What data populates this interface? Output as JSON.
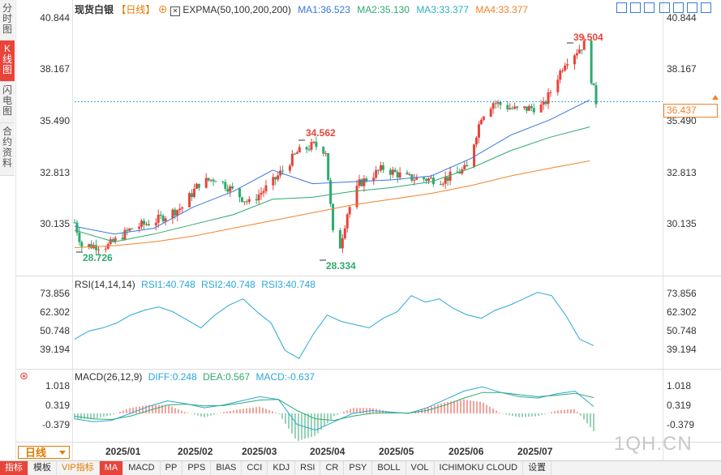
{
  "side_tabs": [
    "分时图",
    "K线图",
    "闪电图",
    "合约资料"
  ],
  "main_legend": {
    "name": "现货白银",
    "period": "【日线】",
    "indicator": "EXPMA(50,100,200,200)",
    "items": [
      {
        "label": "MA1:36.523",
        "color": "#3b78d8"
      },
      {
        "label": "MA2:35.130",
        "color": "#2eaa6e"
      },
      {
        "label": "MA3:33.377",
        "color": "#2ab0c4"
      },
      {
        "label": "MA4:33.377",
        "color": "#f0832b"
      }
    ]
  },
  "rsi_legend": {
    "name": "RSI(14,14,14)",
    "items": [
      {
        "label": "RSI1:40.748",
        "color": "#2aa7d8"
      },
      {
        "label": "RSI2:40.748",
        "color": "#2aa7d8"
      },
      {
        "label": "RSI3:40.748",
        "color": "#2aa7d8"
      }
    ]
  },
  "macd_legend": {
    "name": "MACD(26,12,9)",
    "items": [
      {
        "label": "DIFF:0.248",
        "color": "#2aa7d8"
      },
      {
        "label": "DEA:0.567",
        "color": "#2eaa6e"
      },
      {
        "label": "MACD:-0.637",
        "color": "#2aa7d8"
      }
    ]
  },
  "price_axis": [
    "40.844",
    "38.167",
    "35.490",
    "32.813",
    "30.135"
  ],
  "rsi_axis": [
    "73.856",
    "62.302",
    "50.748",
    "39.194"
  ],
  "macd_axis": [
    "1.018",
    "0.319",
    "-0.379"
  ],
  "current_price": "36.437",
  "annotations": {
    "high": "39.504",
    "mid_high": "34.562",
    "low": "28.334",
    "start_low": "28.726"
  },
  "x_labels": [
    "2025/01",
    "2025/02",
    "2025/03",
    "2025/04",
    "2025/05",
    "2025/06",
    "2025/07"
  ],
  "period_button": "日线",
  "watermark": "1QH.CN",
  "toolbar": [
    "指标",
    "模板",
    "VIP指标",
    "MA",
    "MACD",
    "PP",
    "PPS",
    "BIAS",
    "CCI",
    "KDJ",
    "RSI",
    "CR",
    "PSY",
    "BOLL",
    "VOL",
    "ICHIMOKU CLOUD",
    "设置"
  ],
  "colors": {
    "up": "#e8443a",
    "down": "#2eaa6e",
    "ema1": "#3b78d8",
    "ema2": "#2eaa6e",
    "ema3": "#f0832b",
    "rsi": "#2aa7d8"
  },
  "chart_data": {
    "type": "candlestick",
    "title": "现货白银 【日线】",
    "x_range": [
      "2024-12-17",
      "2025-07-23"
    ],
    "ylim": [
      27.5,
      41.2
    ],
    "price_high": 39.504,
    "price_low": 28.334,
    "close_points": [
      {
        "date": "2024-12-17",
        "close": 30.2
      },
      {
        "date": "2024-12-20",
        "close": 29.0
      },
      {
        "date": "2024-12-31",
        "close": 29.0
      },
      {
        "date": "2025-01-10",
        "close": 29.9
      },
      {
        "date": "2025-01-20",
        "close": 30.3
      },
      {
        "date": "2025-01-31",
        "close": 31.0
      },
      {
        "date": "2025-02-07",
        "close": 32.2
      },
      {
        "date": "2025-02-14",
        "close": 32.5
      },
      {
        "date": "2025-02-28",
        "close": 31.2
      },
      {
        "date": "2025-03-10",
        "close": 32.3
      },
      {
        "date": "2025-03-20",
        "close": 33.8
      },
      {
        "date": "2025-03-27",
        "close": 34.2
      },
      {
        "date": "2025-04-01",
        "close": 33.9
      },
      {
        "date": "2025-04-04",
        "close": 29.6
      },
      {
        "date": "2025-04-07",
        "close": 29.0
      },
      {
        "date": "2025-04-10",
        "close": 30.7
      },
      {
        "date": "2025-04-15",
        "close": 32.2
      },
      {
        "date": "2025-04-25",
        "close": 33.0
      },
      {
        "date": "2025-05-05",
        "close": 32.5
      },
      {
        "date": "2025-05-20",
        "close": 32.4
      },
      {
        "date": "2025-05-30",
        "close": 33.0
      },
      {
        "date": "2025-06-05",
        "close": 35.7
      },
      {
        "date": "2025-06-10",
        "close": 36.4
      },
      {
        "date": "2025-06-20",
        "close": 36.0
      },
      {
        "date": "2025-07-01",
        "close": 36.2
      },
      {
        "date": "2025-07-10",
        "close": 38.5
      },
      {
        "date": "2025-07-18",
        "close": 39.4
      },
      {
        "date": "2025-07-23",
        "close": 36.437
      }
    ],
    "ema_series": [
      {
        "name": "MA1",
        "values": [
          30.0,
          29.6,
          29.9,
          31.0,
          31.8,
          32.9,
          32.2,
          32.3,
          32.4,
          32.6,
          33.5,
          34.7,
          35.5,
          36.523
        ]
      },
      {
        "name": "MA2",
        "values": [
          29.8,
          29.2,
          29.6,
          30.1,
          30.6,
          31.4,
          31.5,
          31.8,
          32.0,
          32.3,
          33.0,
          33.9,
          34.6,
          35.13
        ]
      },
      {
        "name": "MA4",
        "values": [
          28.9,
          29.0,
          29.2,
          29.5,
          29.9,
          30.3,
          30.7,
          31.1,
          31.4,
          31.7,
          32.1,
          32.6,
          33.0,
          33.377
        ]
      }
    ],
    "rsi": {
      "range": [
        30,
        80
      ],
      "last": 40.748,
      "values": [
        45,
        50,
        52,
        55,
        60,
        63,
        65,
        62,
        57,
        52,
        60,
        66,
        70,
        62,
        55,
        38,
        33,
        48,
        60,
        56,
        54,
        52,
        58,
        62,
        72,
        68,
        70,
        64,
        60,
        58,
        63,
        66,
        70,
        74,
        72,
        60,
        45,
        41
      ]
    },
    "macd": {
      "range": [
        -0.8,
        1.3
      ],
      "diff_last": 0.248,
      "dea_last": 0.567,
      "macd_last": -0.637,
      "diff": [
        -0.2,
        -0.3,
        -0.25,
        0.0,
        0.25,
        0.45,
        0.35,
        0.2,
        0.3,
        0.45,
        0.6,
        0.5,
        -0.4,
        -0.6,
        -0.3,
        0.0,
        0.1,
        0.05,
        0.0,
        0.2,
        0.5,
        0.8,
        0.95,
        0.75,
        0.6,
        0.55,
        0.7,
        0.8,
        0.248
      ],
      "dea": [
        -0.1,
        -0.2,
        -0.22,
        -0.1,
        0.1,
        0.3,
        0.33,
        0.27,
        0.28,
        0.37,
        0.48,
        0.5,
        0.1,
        -0.2,
        -0.25,
        -0.1,
        0.0,
        0.02,
        0.01,
        0.1,
        0.3,
        0.55,
        0.75,
        0.75,
        0.67,
        0.6,
        0.65,
        0.72,
        0.567
      ]
    }
  }
}
